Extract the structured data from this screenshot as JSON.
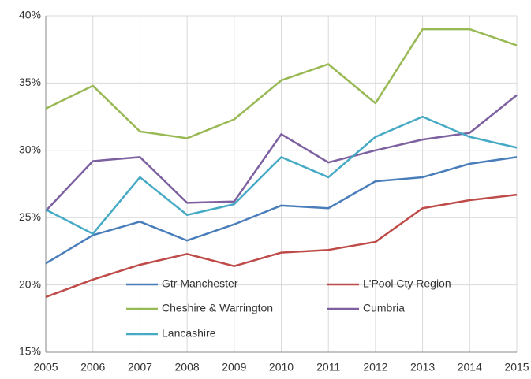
{
  "chart_data": {
    "type": "line",
    "x": [
      2005,
      2006,
      2007,
      2008,
      2009,
      2010,
      2011,
      2012,
      2013,
      2014,
      2015
    ],
    "xlim": [
      2005,
      2015
    ],
    "xticks": [
      2005,
      2006,
      2007,
      2008,
      2009,
      2010,
      2011,
      2012,
      2013,
      2014,
      2015
    ],
    "ylim": [
      15,
      40
    ],
    "yticks": [
      {
        "value": 15,
        "label": "15%"
      },
      {
        "value": 20,
        "label": "20%"
      },
      {
        "value": 25,
        "label": "25%"
      },
      {
        "value": 30,
        "label": "30%"
      },
      {
        "value": 35,
        "label": "35%"
      },
      {
        "value": 40,
        "label": "40%"
      }
    ],
    "grid": true,
    "series": [
      {
        "name": "Gtr Manchester",
        "color": "#4a7ebb",
        "values": [
          21.6,
          23.7,
          24.7,
          23.3,
          24.5,
          25.9,
          25.7,
          27.7,
          28.0,
          29.0,
          29.5
        ]
      },
      {
        "name": "L'Pool Cty Region",
        "color": "#be4b48",
        "values": [
          19.1,
          20.4,
          21.5,
          22.3,
          21.4,
          22.4,
          22.6,
          23.2,
          25.7,
          26.3,
          26.7
        ]
      },
      {
        "name": "Cheshire & Warrington",
        "color": "#98b954",
        "values": [
          33.1,
          34.8,
          31.4,
          30.9,
          32.3,
          35.2,
          36.4,
          33.5,
          39.0,
          39.0,
          37.8
        ]
      },
      {
        "name": "Cumbria",
        "color": "#7d60a0",
        "values": [
          25.5,
          29.2,
          29.5,
          26.1,
          26.2,
          31.2,
          29.1,
          30.0,
          30.8,
          31.3,
          34.1
        ]
      },
      {
        "name": "Lancashire",
        "color": "#46aac5",
        "values": [
          25.6,
          23.8,
          28.0,
          25.2,
          26.0,
          29.5,
          28.0,
          31.0,
          32.5,
          31.0,
          30.2
        ]
      }
    ]
  }
}
